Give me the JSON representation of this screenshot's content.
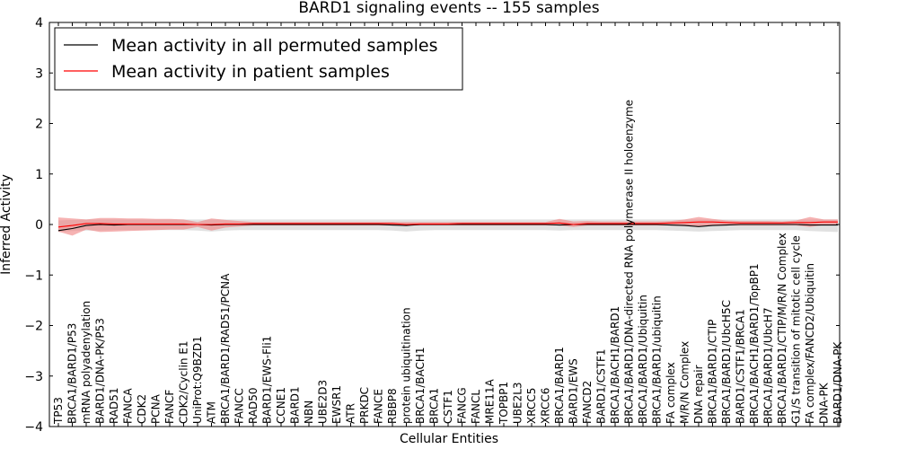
{
  "chart_data": {
    "type": "line",
    "title": "BARD1 signaling events -- 155 samples",
    "xlabel": "Cellular Entities",
    "ylabel": "Inferred Activity",
    "ylim": [
      -4,
      4
    ],
    "yticks": [
      -4,
      -3,
      -2,
      -1,
      0,
      1,
      2,
      3,
      4
    ],
    "ytick_labels": [
      "−4",
      "−3",
      "−2",
      "−1",
      "0",
      "1",
      "2",
      "3",
      "4"
    ],
    "legend_position": "top-left",
    "categories": [
      "TP53",
      "BRCA1/BARD1/P53",
      "mRNA polyadenylation",
      "BARD1/DNA-PK/P53",
      "RAD51",
      "FANCA",
      "CDK2",
      "PCNA",
      "FANCF",
      "CDK2/Cyclin E1",
      "UniProt:Q9BZD1",
      "ATM",
      "BRCA1/BARD1/RAD51/PCNA",
      "FANCC",
      "RAD50",
      "BARD1/EWS-Fli1",
      "CCNE1",
      "BARD1",
      "NBN",
      "UBE2D3",
      "EWSR1",
      "ATR",
      "PRKDC",
      "FANCE",
      "RBBP8",
      "protein ubiquitination",
      "BRCA1/BACH1",
      "BRCA1",
      "CSTF1",
      "FANCG",
      "FANCL",
      "MRE11A",
      "TOPBP1",
      "UBE2L3",
      "XRCC5",
      "XRCC6",
      "BRCA1/BARD1",
      "BARD1/EWS",
      "FANCD2",
      "BARD1/CSTF1",
      "BRCA1/BACH1/BARD1",
      "BRCA1/BARD1/DNA-directed RNA polymerase II holoenzyme",
      "BRCA1/BARD1/Ubiquitin",
      "BRCA1/BARD1/ubiquitin",
      "FA complex",
      "M/R/N Complex",
      "DNA repair",
      "BRCA1/BARD1/CTIP",
      "BRCA1/BARD1/UbcH5C",
      "BARD1/CSTF1/BRCA1",
      "BRCA1/BACH1/BARD1/TopBP1",
      "BRCA1/BARD1/UbcH7",
      "BRCA1/BARD1/CTIP/M/R/N Complex",
      "G1/S transition of mitotic cell cycle",
      "FA complex/FANCD2/Ubiquitin",
      "DNA-PK",
      "BARD1/DNA-PK"
    ],
    "series": [
      {
        "name": "Mean activity in all permuted samples",
        "color": "#000000",
        "values": [
          -0.12,
          -0.08,
          -0.02,
          0.0,
          -0.01,
          0.0,
          0.0,
          0.0,
          0.0,
          0.0,
          0.0,
          -0.01,
          0.0,
          0.0,
          0.0,
          0.0,
          0.0,
          0.0,
          0.0,
          0.0,
          0.0,
          0.0,
          0.0,
          0.0,
          -0.01,
          -0.02,
          0.0,
          0.0,
          0.0,
          0.0,
          0.0,
          0.0,
          0.0,
          0.0,
          0.0,
          0.0,
          -0.01,
          0.0,
          0.0,
          0.0,
          0.0,
          0.0,
          0.0,
          0.0,
          -0.01,
          -0.02,
          -0.04,
          -0.02,
          -0.01,
          0.0,
          0.0,
          0.0,
          0.0,
          0.0,
          -0.01,
          -0.01,
          -0.01
        ],
        "lower": [
          -0.15,
          -0.13,
          -0.12,
          -0.12,
          -0.11,
          -0.11,
          -0.11,
          -0.11,
          -0.11,
          -0.11,
          -0.12,
          -0.14,
          -0.12,
          -0.11,
          -0.11,
          -0.11,
          -0.11,
          -0.11,
          -0.11,
          -0.11,
          -0.11,
          -0.11,
          -0.11,
          -0.11,
          -0.12,
          -0.14,
          -0.12,
          -0.11,
          -0.11,
          -0.11,
          -0.11,
          -0.11,
          -0.11,
          -0.11,
          -0.11,
          -0.11,
          -0.12,
          -0.11,
          -0.11,
          -0.11,
          -0.11,
          -0.11,
          -0.11,
          -0.11,
          -0.12,
          -0.13,
          -0.14,
          -0.13,
          -0.12,
          -0.11,
          -0.11,
          -0.11,
          -0.11,
          -0.11,
          -0.13,
          -0.14,
          -0.15
        ],
        "upper": [
          0.08,
          0.09,
          0.1,
          0.1,
          0.1,
          0.1,
          0.1,
          0.1,
          0.1,
          0.1,
          0.1,
          0.1,
          0.1,
          0.1,
          0.1,
          0.1,
          0.1,
          0.1,
          0.1,
          0.1,
          0.1,
          0.1,
          0.1,
          0.1,
          0.1,
          0.1,
          0.1,
          0.1,
          0.1,
          0.1,
          0.1,
          0.1,
          0.1,
          0.1,
          0.1,
          0.1,
          0.1,
          0.1,
          0.1,
          0.1,
          0.1,
          0.1,
          0.1,
          0.1,
          0.1,
          0.1,
          0.1,
          0.1,
          0.1,
          0.1,
          0.1,
          0.1,
          0.1,
          0.1,
          0.1,
          0.1,
          0.1
        ]
      },
      {
        "name": "Mean activity in patient samples",
        "color": "#ff0000",
        "band_color": "#f08080",
        "values": [
          -0.05,
          -0.02,
          0.02,
          0.02,
          0.01,
          0.01,
          0.01,
          0.01,
          0.01,
          0.01,
          0.0,
          0.0,
          0.01,
          0.01,
          0.02,
          0.02,
          0.02,
          0.02,
          0.02,
          0.02,
          0.02,
          0.02,
          0.02,
          0.02,
          0.02,
          0.0,
          0.01,
          0.01,
          0.01,
          0.02,
          0.02,
          0.02,
          0.02,
          0.02,
          0.02,
          0.02,
          0.03,
          0.0,
          0.02,
          0.02,
          0.02,
          0.02,
          0.02,
          0.02,
          0.03,
          0.04,
          0.05,
          0.05,
          0.04,
          0.03,
          0.03,
          0.03,
          0.03,
          0.04,
          0.04,
          0.05,
          0.05
        ],
        "lower": [
          -0.14,
          -0.22,
          -0.1,
          -0.15,
          -0.14,
          -0.13,
          -0.12,
          -0.11,
          -0.1,
          -0.1,
          -0.05,
          -0.12,
          -0.06,
          -0.04,
          -0.02,
          -0.02,
          -0.02,
          -0.02,
          -0.02,
          -0.02,
          -0.02,
          -0.02,
          -0.02,
          -0.02,
          -0.02,
          -0.02,
          -0.02,
          -0.02,
          -0.02,
          -0.02,
          -0.02,
          -0.02,
          -0.02,
          -0.02,
          -0.02,
          -0.02,
          -0.02,
          -0.05,
          -0.02,
          -0.02,
          -0.02,
          -0.02,
          -0.02,
          -0.02,
          -0.02,
          -0.03,
          -0.05,
          -0.02,
          -0.02,
          -0.02,
          -0.02,
          -0.02,
          -0.02,
          -0.02,
          -0.05,
          -0.01,
          0.0
        ],
        "upper": [
          0.14,
          0.12,
          0.1,
          0.13,
          0.13,
          0.12,
          0.12,
          0.11,
          0.11,
          0.1,
          0.05,
          0.12,
          0.09,
          0.07,
          0.05,
          0.05,
          0.05,
          0.05,
          0.05,
          0.05,
          0.05,
          0.05,
          0.05,
          0.05,
          0.05,
          0.05,
          0.05,
          0.05,
          0.05,
          0.05,
          0.05,
          0.05,
          0.05,
          0.05,
          0.05,
          0.05,
          0.11,
          0.06,
          0.07,
          0.06,
          0.06,
          0.06,
          0.06,
          0.06,
          0.07,
          0.1,
          0.15,
          0.11,
          0.08,
          0.07,
          0.07,
          0.07,
          0.06,
          0.08,
          0.15,
          0.1,
          0.1
        ]
      }
    ]
  }
}
